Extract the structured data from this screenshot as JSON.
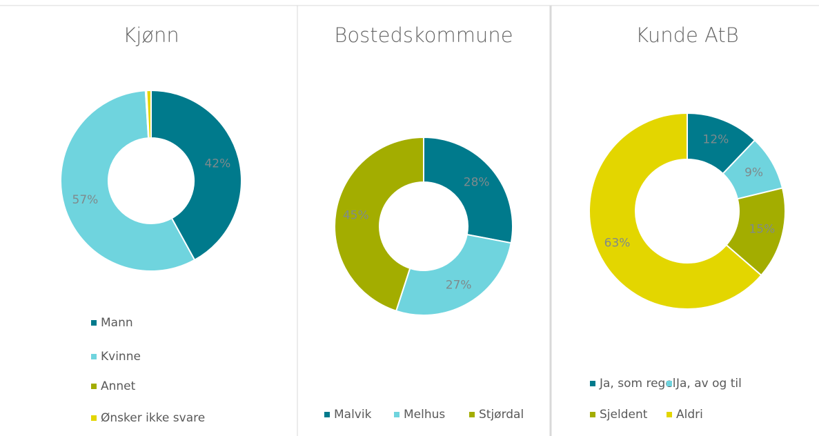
{
  "chart_data": [
    {
      "type": "pie",
      "title": "Kjønn",
      "categories": [
        "Mann",
        "Kvinne",
        "Annet",
        "Ønsker ikke svare"
      ],
      "values": [
        42,
        57,
        0.2,
        0.8
      ],
      "value_labels": [
        "42%",
        "57%",
        null,
        null
      ],
      "colors": [
        "#007a8c",
        "#6fd4de",
        "#a3ad00",
        "#e3d600"
      ]
    },
    {
      "type": "pie",
      "title": "Bostedskommune",
      "categories": [
        "Malvik",
        "Melhus",
        "Stjørdal"
      ],
      "values": [
        28,
        27,
        45
      ],
      "value_labels": [
        "28%",
        "27%",
        "45%"
      ],
      "colors": [
        "#007a8c",
        "#6fd4de",
        "#a3ad00"
      ]
    },
    {
      "type": "pie",
      "title": "Kunde AtB",
      "categories": [
        "Ja, som regel",
        "Ja, av og til",
        "Sjeldent",
        "Aldri"
      ],
      "values": [
        12,
        9,
        15,
        63
      ],
      "value_labels": [
        "12%",
        "9%",
        "15%",
        "63%"
      ],
      "colors": [
        "#007a8c",
        "#6fd4de",
        "#a3ad00",
        "#e3d600"
      ]
    }
  ]
}
